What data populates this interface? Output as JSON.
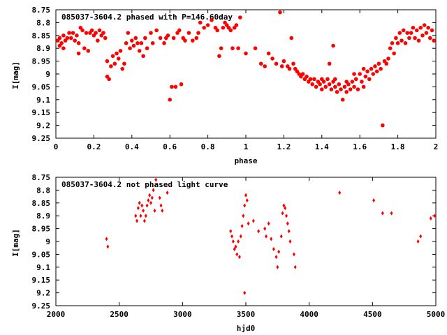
{
  "chart_data": [
    {
      "type": "scatter",
      "title": "085037-3604.2 phased with P=146.60day",
      "xlabel": "phase",
      "ylabel": "I[mag]",
      "xlim": [
        0,
        2
      ],
      "ylim": [
        9.25,
        8.75
      ],
      "y_inverted": true,
      "grid": false,
      "xticks": [
        "0",
        "0.2",
        "0.4",
        "0.6",
        "0.8",
        "1",
        "1.2",
        "1.4",
        "1.6",
        "1.8",
        "2"
      ],
      "yticks": [
        "8.75",
        "8.8",
        "8.85",
        "8.9",
        "8.95",
        "9",
        "9.05",
        "9.1",
        "9.15",
        "9.2",
        "9.25"
      ],
      "marker": "filled-circle",
      "color": "#ff0000",
      "series": [
        {
          "points": [
            [
              0.01,
              8.87
            ],
            [
              0.02,
              8.86
            ],
            [
              0.02,
              8.89
            ],
            [
              0.03,
              8.88
            ],
            [
              0.04,
              8.85
            ],
            [
              0.04,
              8.9
            ],
            [
              0.05,
              8.87
            ],
            [
              0.06,
              8.86
            ],
            [
              0.07,
              8.84
            ],
            [
              0.08,
              8.86
            ],
            [
              0.09,
              8.84
            ],
            [
              0.1,
              8.87
            ],
            [
              0.11,
              8.85
            ],
            [
              0.12,
              8.88
            ],
            [
              0.12,
              8.92
            ],
            [
              0.13,
              8.82
            ],
            [
              0.14,
              8.83
            ],
            [
              0.15,
              8.9
            ],
            [
              0.16,
              8.84
            ],
            [
              0.17,
              8.91
            ],
            [
              0.18,
              8.84
            ],
            [
              0.19,
              8.83
            ],
            [
              0.2,
              8.85
            ],
            [
              0.21,
              8.84
            ],
            [
              0.22,
              8.87
            ],
            [
              0.23,
              8.83
            ],
            [
              0.24,
              8.85
            ],
            [
              0.25,
              8.84
            ],
            [
              0.26,
              8.86
            ],
            [
              0.27,
              8.95
            ],
            [
              0.27,
              9.01
            ],
            [
              0.28,
              9.02
            ],
            [
              0.29,
              8.97
            ],
            [
              0.3,
              8.93
            ],
            [
              0.31,
              8.96
            ],
            [
              0.32,
              8.92
            ],
            [
              0.33,
              8.94
            ],
            [
              0.34,
              8.91
            ],
            [
              0.35,
              8.98
            ],
            [
              0.36,
              8.96
            ],
            [
              0.37,
              8.88
            ],
            [
              0.38,
              8.84
            ],
            [
              0.39,
              8.9
            ],
            [
              0.4,
              8.87
            ],
            [
              0.41,
              8.89
            ],
            [
              0.42,
              8.86
            ],
            [
              0.43,
              8.88
            ],
            [
              0.44,
              8.91
            ],
            [
              0.45,
              8.88
            ],
            [
              0.46,
              8.93
            ],
            [
              0.47,
              8.86
            ],
            [
              0.48,
              8.9
            ],
            [
              0.5,
              8.84
            ],
            [
              0.51,
              8.88
            ],
            [
              0.53,
              8.83
            ],
            [
              0.55,
              8.86
            ],
            [
              0.57,
              8.88
            ],
            [
              0.58,
              8.86
            ],
            [
              0.59,
              8.85
            ],
            [
              0.6,
              9.1
            ],
            [
              0.61,
              9.05
            ],
            [
              0.62,
              8.86
            ],
            [
              0.63,
              9.05
            ],
            [
              0.64,
              8.84
            ],
            [
              0.65,
              8.83
            ],
            [
              0.66,
              9.04
            ],
            [
              0.67,
              8.86
            ],
            [
              0.68,
              8.87
            ],
            [
              0.7,
              8.84
            ],
            [
              0.72,
              8.87
            ],
            [
              0.74,
              8.86
            ],
            [
              0.75,
              8.84
            ],
            [
              0.76,
              8.8
            ],
            [
              0.78,
              8.82
            ],
            [
              0.8,
              8.81
            ],
            [
              0.82,
              8.79
            ],
            [
              0.84,
              8.82
            ],
            [
              0.85,
              8.83
            ],
            [
              0.86,
              8.93
            ],
            [
              0.87,
              8.9
            ],
            [
              0.88,
              8.82
            ],
            [
              0.89,
              8.8
            ],
            [
              0.9,
              8.81
            ],
            [
              0.91,
              8.82
            ],
            [
              0.92,
              8.83
            ],
            [
              0.93,
              8.9
            ],
            [
              0.94,
              8.82
            ],
            [
              0.95,
              8.81
            ],
            [
              0.96,
              8.9
            ],
            [
              0.97,
              8.78
            ],
            [
              1.0,
              8.92
            ],
            [
              1.05,
              8.9
            ],
            [
              1.08,
              8.96
            ],
            [
              1.1,
              8.97
            ],
            [
              1.12,
              8.92
            ],
            [
              1.14,
              8.94
            ],
            [
              1.16,
              8.96
            ],
            [
              1.18,
              8.76
            ],
            [
              1.19,
              8.97
            ],
            [
              1.2,
              8.95
            ],
            [
              1.22,
              8.97
            ],
            [
              1.23,
              8.98
            ],
            [
              1.24,
              8.86
            ],
            [
              1.25,
              8.96
            ],
            [
              1.26,
              8.98
            ],
            [
              1.27,
              8.99
            ],
            [
              1.28,
              9.0
            ],
            [
              1.29,
              9.01
            ],
            [
              1.3,
              9.0
            ],
            [
              1.31,
              9.02
            ],
            [
              1.32,
              9.01
            ],
            [
              1.33,
              9.03
            ],
            [
              1.34,
              9.02
            ],
            [
              1.35,
              9.04
            ],
            [
              1.36,
              9.02
            ],
            [
              1.37,
              9.05
            ],
            [
              1.38,
              9.03
            ],
            [
              1.39,
              9.04
            ],
            [
              1.4,
              9.06
            ],
            [
              1.41,
              9.03
            ],
            [
              1.42,
              9.05
            ],
            [
              1.43,
              9.02
            ],
            [
              1.44,
              9.04
            ],
            [
              1.45,
              9.06
            ],
            [
              1.46,
              9.03
            ],
            [
              1.47,
              9.05
            ],
            [
              1.48,
              9.07
            ],
            [
              1.49,
              9.04
            ],
            [
              1.5,
              9.06
            ],
            [
              1.51,
              9.1
            ],
            [
              1.52,
              9.05
            ],
            [
              1.53,
              9.07
            ],
            [
              1.54,
              9.04
            ],
            [
              1.55,
              9.06
            ],
            [
              1.56,
              9.03
            ],
            [
              1.57,
              9.05
            ],
            [
              1.58,
              9.02
            ],
            [
              1.59,
              9.06
            ],
            [
              1.6,
              9.0
            ],
            [
              1.61,
              9.03
            ],
            [
              1.62,
              8.98
            ],
            [
              1.63,
              9.01
            ],
            [
              1.64,
              8.99
            ],
            [
              1.65,
              9.02
            ],
            [
              1.66,
              8.98
            ],
            [
              1.67,
              9.0
            ],
            [
              1.68,
              8.97
            ],
            [
              1.69,
              8.99
            ],
            [
              1.7,
              8.96
            ],
            [
              1.71,
              8.98
            ],
            [
              1.72,
              9.2
            ],
            [
              1.73,
              8.95
            ],
            [
              1.74,
              8.96
            ],
            [
              1.75,
              8.94
            ],
            [
              1.76,
              8.9
            ],
            [
              1.77,
              8.88
            ],
            [
              1.78,
              8.92
            ],
            [
              1.79,
              8.86
            ],
            [
              1.8,
              8.88
            ],
            [
              1.81,
              8.84
            ],
            [
              1.82,
              8.87
            ],
            [
              1.83,
              8.83
            ],
            [
              1.84,
              8.88
            ],
            [
              1.85,
              8.84
            ],
            [
              1.86,
              8.86
            ],
            [
              1.87,
              8.84
            ],
            [
              1.88,
              8.82
            ],
            [
              1.89,
              8.86
            ],
            [
              1.9,
              8.83
            ],
            [
              1.91,
              8.87
            ],
            [
              1.92,
              8.82
            ],
            [
              1.93,
              8.85
            ],
            [
              1.94,
              8.81
            ],
            [
              1.95,
              8.84
            ],
            [
              1.96,
              8.82
            ],
            [
              1.97,
              8.86
            ],
            [
              1.98,
              8.83
            ],
            [
              1.99,
              8.87
            ],
            [
              1.4,
              9.02
            ],
            [
              1.44,
              8.96
            ],
            [
              1.46,
              8.89
            ],
            [
              1.47,
              9.02
            ],
            [
              1.53,
              9.03
            ],
            [
              1.57,
              9.0
            ],
            [
              1.62,
              9.05
            ]
          ]
        }
      ]
    },
    {
      "type": "scatter",
      "title": "085037-3604.2 not phased light curve",
      "xlabel": "hjd0",
      "ylabel": "I[mag]",
      "xlim": [
        2000,
        5000
      ],
      "ylim": [
        9.25,
        8.75
      ],
      "y_inverted": true,
      "grid": false,
      "xticks": [
        "2000",
        "2500",
        "3000",
        "3500",
        "4000",
        "4500",
        "5000"
      ],
      "yticks": [
        "8.75",
        "8.8",
        "8.85",
        "8.9",
        "8.95",
        "9",
        "9.05",
        "9.1",
        "9.15",
        "9.2",
        "9.25"
      ],
      "marker": "filled-diamond",
      "color": "#ff0000",
      "series": [
        {
          "points": [
            [
              2400,
              8.99
            ],
            [
              2410,
              9.02
            ],
            [
              2630,
              8.9
            ],
            [
              2640,
              8.92
            ],
            [
              2650,
              8.87
            ],
            [
              2660,
              8.85
            ],
            [
              2670,
              8.9
            ],
            [
              2680,
              8.86
            ],
            [
              2690,
              8.88
            ],
            [
              2700,
              8.92
            ],
            [
              2710,
              8.9
            ],
            [
              2720,
              8.86
            ],
            [
              2730,
              8.84
            ],
            [
              2740,
              8.82
            ],
            [
              2750,
              8.85
            ],
            [
              2760,
              8.83
            ],
            [
              2770,
              8.8
            ],
            [
              2780,
              8.88
            ],
            [
              2790,
              8.76
            ],
            [
              2820,
              8.83
            ],
            [
              2830,
              8.86
            ],
            [
              2840,
              8.88
            ],
            [
              2880,
              8.81
            ],
            [
              3380,
              8.96
            ],
            [
              3390,
              8.98
            ],
            [
              3400,
              9.0
            ],
            [
              3410,
              9.03
            ],
            [
              3420,
              9.02
            ],
            [
              3430,
              9.05
            ],
            [
              3440,
              9.0
            ],
            [
              3450,
              9.06
            ],
            [
              3460,
              8.98
            ],
            [
              3470,
              8.94
            ],
            [
              3480,
              8.9
            ],
            [
              3490,
              8.86
            ],
            [
              3500,
              8.82
            ],
            [
              3510,
              8.84
            ],
            [
              3520,
              8.93
            ],
            [
              3490,
              9.2
            ],
            [
              3560,
              8.92
            ],
            [
              3600,
              8.96
            ],
            [
              3650,
              8.95
            ],
            [
              3660,
              8.98
            ],
            [
              3680,
              8.93
            ],
            [
              3700,
              8.99
            ],
            [
              3720,
              9.03
            ],
            [
              3740,
              9.06
            ],
            [
              3750,
              9.1
            ],
            [
              3760,
              9.04
            ],
            [
              3780,
              8.98
            ],
            [
              3790,
              8.89
            ],
            [
              3800,
              8.86
            ],
            [
              3810,
              8.87
            ],
            [
              3820,
              8.9
            ],
            [
              3830,
              8.93
            ],
            [
              3840,
              8.96
            ],
            [
              3850,
              9.0
            ],
            [
              3880,
              9.05
            ],
            [
              3890,
              9.1
            ],
            [
              4240,
              8.81
            ],
            [
              4510,
              8.84
            ],
            [
              4580,
              8.89
            ],
            [
              4650,
              8.89
            ],
            [
              4860,
              9.0
            ],
            [
              4880,
              8.98
            ],
            [
              4960,
              8.91
            ],
            [
              4990,
              8.9
            ]
          ]
        }
      ]
    }
  ]
}
